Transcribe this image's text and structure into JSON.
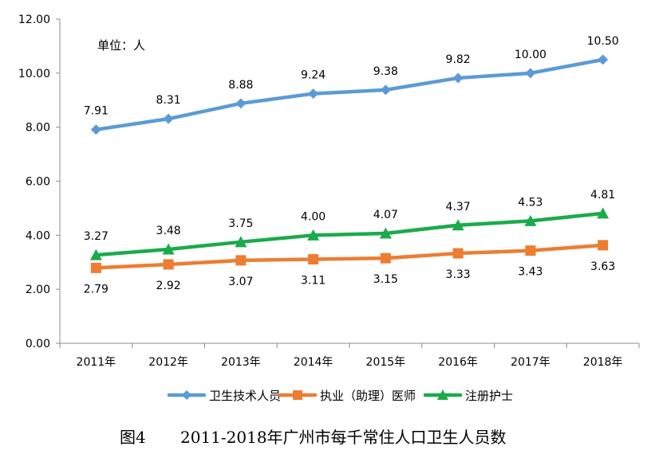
{
  "chart_data": {
    "type": "line",
    "title": "",
    "unit_note": "单位：人",
    "categories": [
      "2011年",
      "2012年",
      "2013年",
      "2014年",
      "2015年",
      "2016年",
      "2017年",
      "2018年"
    ],
    "ylim": [
      0,
      12
    ],
    "yticks": [
      "0.00",
      "2.00",
      "4.00",
      "6.00",
      "8.00",
      "10.00",
      "12.00"
    ],
    "grid": false,
    "legend_position": "bottom",
    "series": [
      {
        "name": "卫生技术人员",
        "color": "#5B9BD5",
        "marker": "diamond",
        "label_position": "above",
        "values": [
          7.91,
          8.31,
          8.88,
          9.24,
          9.38,
          9.82,
          10.0,
          10.5
        ],
        "labels": [
          "7.91",
          "8.31",
          "8.88",
          "9.24",
          "9.38",
          "9.82",
          "10.00",
          "10.50"
        ]
      },
      {
        "name": "执业（助理）医师",
        "color": "#ED7D31",
        "marker": "square",
        "label_position": "below",
        "values": [
          2.79,
          2.92,
          3.07,
          3.11,
          3.15,
          3.33,
          3.43,
          3.63
        ],
        "labels": [
          "2.79",
          "2.92",
          "3.07",
          "3.11",
          "3.15",
          "3.33",
          "3.43",
          "3.63"
        ]
      },
      {
        "name": "注册护士",
        "color": "#1AAB4B",
        "marker": "triangle",
        "label_position": "above",
        "values": [
          3.27,
          3.48,
          3.75,
          4.0,
          4.07,
          4.37,
          4.53,
          4.81
        ],
        "labels": [
          "3.27",
          "3.48",
          "3.75",
          "4.00",
          "4.07",
          "4.37",
          "4.53",
          "4.81"
        ]
      }
    ]
  },
  "caption": {
    "figure_no": "图4",
    "text": "2011-2018年广州市每千常住人口卫生人员数"
  }
}
